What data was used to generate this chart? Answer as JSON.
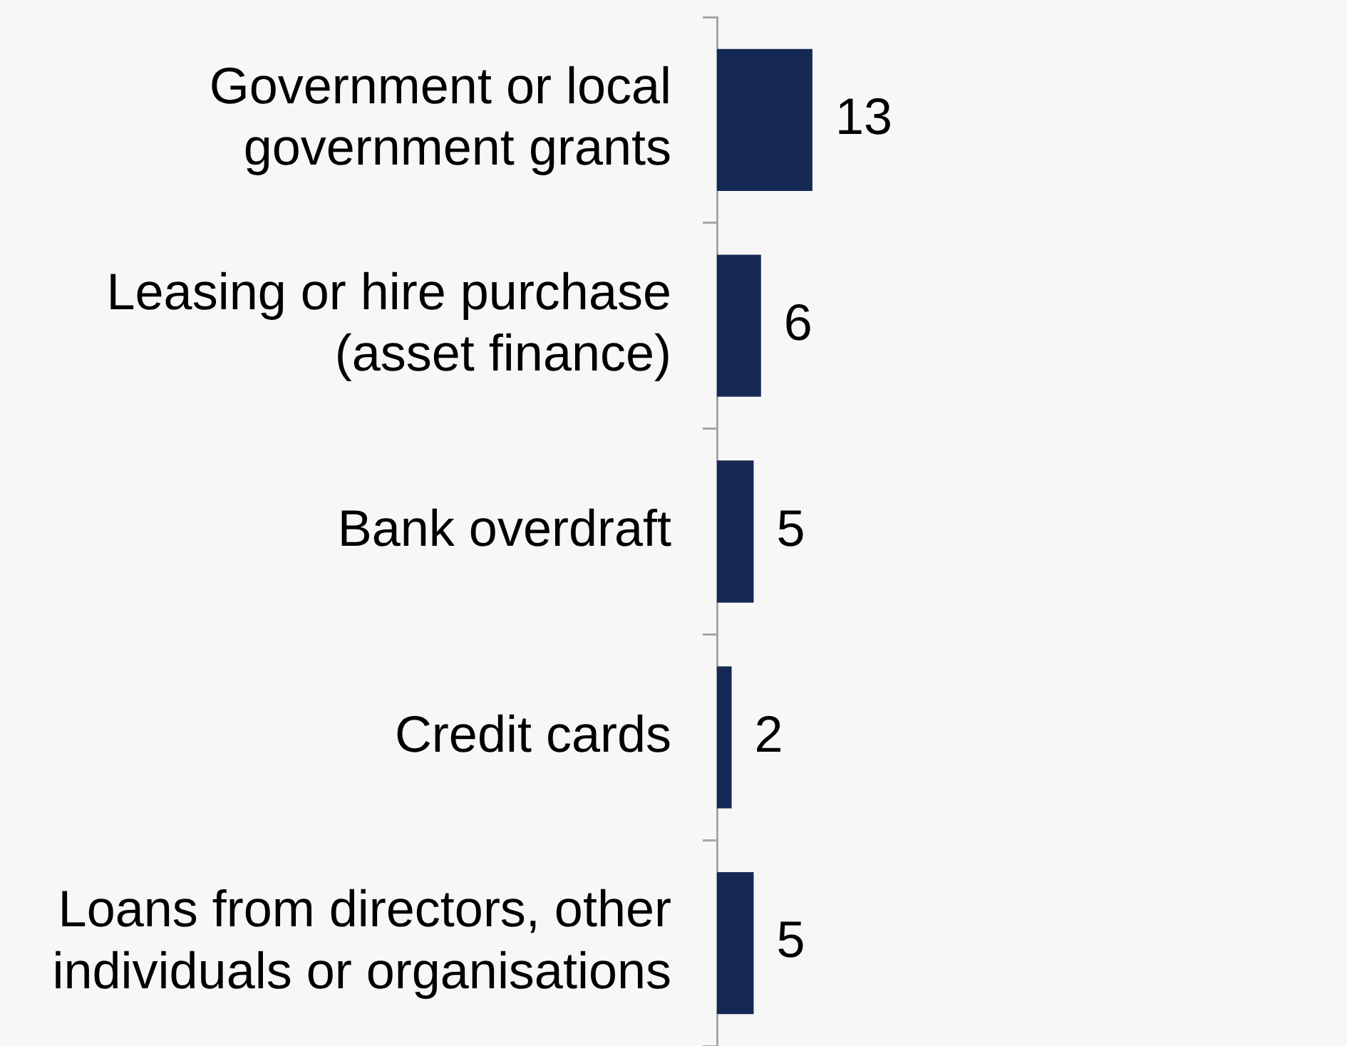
{
  "chart_data": {
    "type": "bar",
    "orientation": "horizontal",
    "categories": [
      "Government or local government grants",
      "Leasing or hire purchase (asset finance)",
      "Bank overdraft",
      "Credit cards",
      "Loans from directors, other individuals or organisations"
    ],
    "values": [
      13,
      6,
      5,
      2,
      5
    ],
    "color": "#162955",
    "data_labels": true,
    "tick_labels": "y"
  }
}
